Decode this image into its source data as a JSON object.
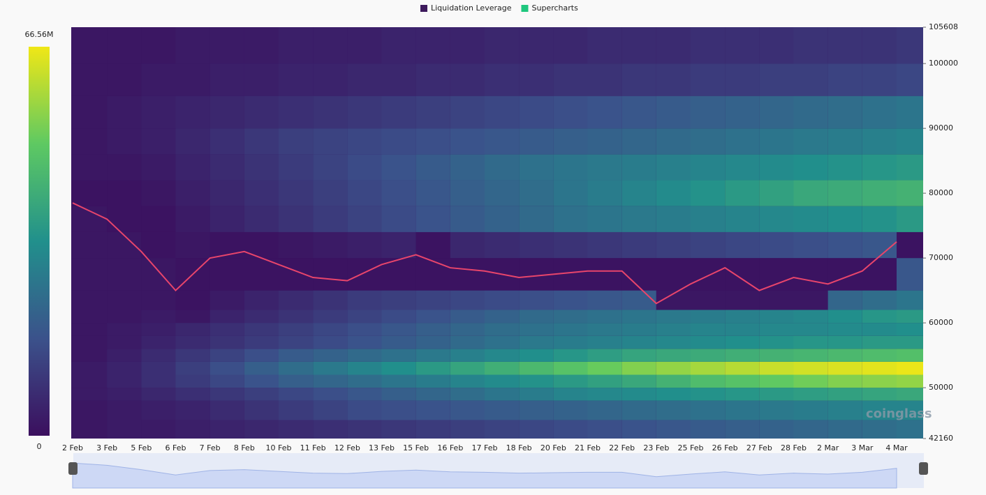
{
  "chart_data": {
    "type": "heatmap",
    "series": [
      {
        "name": "Liquidation Leverage",
        "color": "#3d1a5c"
      },
      {
        "name": "Supercharts",
        "color": "#1fc77e"
      }
    ],
    "watermark": "coinglass",
    "categories": [
      "2 Feb",
      "3 Feb",
      "5 Feb",
      "6 Feb",
      "7 Feb",
      "8 Feb",
      "10 Feb",
      "11 Feb",
      "12 Feb",
      "13 Feb",
      "15 Feb",
      "16 Feb",
      "17 Feb",
      "18 Feb",
      "20 Feb",
      "21 Feb",
      "22 Feb",
      "23 Feb",
      "25 Feb",
      "26 Feb",
      "27 Feb",
      "28 Feb",
      "2 Mar",
      "3 Mar",
      "4 Mar"
    ],
    "ylim": [
      42160,
      105608
    ],
    "yticks": [
      42160,
      50000,
      60000,
      70000,
      80000,
      90000,
      100000,
      105608
    ],
    "zlim": [
      0,
      66.56
    ],
    "zticks": [
      0,
      {
        "value": 66.56,
        "label": "66.56M"
      }
    ],
    "y_bins": [
      42160,
      45000,
      48000,
      50000,
      52000,
      54000,
      56000,
      58000,
      60000,
      62000,
      65000,
      70000,
      74000,
      78000,
      82000,
      86000,
      90000,
      95000,
      100000,
      105608
    ],
    "z": [
      [
        2,
        3,
        3,
        4,
        5,
        6,
        7,
        8,
        9,
        10,
        11,
        12,
        13,
        14,
        15,
        16,
        17,
        18,
        19,
        20,
        21,
        22,
        23,
        24,
        25
      ],
      [
        2,
        3,
        4,
        5,
        7,
        9,
        11,
        13,
        15,
        16,
        17,
        18,
        19,
        20,
        21,
        22,
        23,
        24,
        25,
        26,
        27,
        28,
        29,
        30,
        30
      ],
      [
        3,
        4,
        6,
        8,
        10,
        12,
        14,
        16,
        18,
        20,
        22,
        24,
        26,
        28,
        30,
        31,
        32,
        33,
        34,
        35,
        36,
        37,
        38,
        39,
        40
      ],
      [
        3,
        5,
        8,
        11,
        14,
        17,
        20,
        22,
        24,
        26,
        28,
        30,
        32,
        34,
        36,
        38,
        40,
        43,
        46,
        48,
        50,
        52,
        54,
        55,
        56
      ],
      [
        3,
        5,
        8,
        12,
        16,
        20,
        24,
        27,
        30,
        33,
        36,
        39,
        42,
        45,
        48,
        51,
        54,
        56,
        58,
        60,
        62,
        63,
        64,
        65,
        66
      ],
      [
        2,
        4,
        7,
        10,
        13,
        16,
        19,
        21,
        23,
        25,
        27,
        29,
        31,
        33,
        35,
        37,
        39,
        40,
        41,
        42,
        43,
        44,
        45,
        46,
        47
      ],
      [
        2,
        3,
        5,
        7,
        9,
        11,
        13,
        15,
        17,
        19,
        21,
        23,
        25,
        27,
        28,
        29,
        30,
        31,
        32,
        33,
        34,
        35,
        35,
        36,
        36
      ],
      [
        2,
        3,
        4,
        6,
        8,
        10,
        12,
        14,
        16,
        18,
        20,
        22,
        24,
        25,
        26,
        27,
        28,
        29,
        30,
        30,
        31,
        31,
        32,
        32,
        33
      ],
      [
        2,
        2,
        3,
        2,
        5,
        7,
        9,
        11,
        13,
        15,
        17,
        19,
        21,
        23,
        24,
        25,
        26,
        27,
        28,
        29,
        30,
        31,
        33,
        35,
        36
      ],
      [
        2,
        2,
        2,
        1,
        3,
        5,
        7,
        9,
        11,
        12,
        13,
        14,
        15,
        16,
        17,
        18,
        19,
        2,
        2,
        2,
        2,
        2,
        22,
        24,
        26
      ],
      [
        2,
        2,
        2,
        1,
        1,
        1,
        1,
        1,
        1,
        1,
        1,
        1,
        1,
        1,
        1,
        1,
        1,
        1,
        1,
        1,
        1,
        1,
        1,
        1,
        18
      ],
      [
        2,
        2,
        1,
        2,
        1,
        1,
        2,
        3,
        4,
        5,
        1,
        6,
        7,
        8,
        9,
        10,
        11,
        12,
        13,
        14,
        15,
        16,
        17,
        18,
        1
      ],
      [
        2,
        1,
        1,
        3,
        5,
        7,
        9,
        11,
        13,
        15,
        17,
        19,
        21,
        23,
        25,
        26,
        27,
        28,
        29,
        30,
        31,
        32,
        33,
        34,
        36
      ],
      [
        1,
        1,
        2,
        4,
        6,
        8,
        10,
        12,
        14,
        16,
        18,
        20,
        22,
        24,
        26,
        28,
        30,
        32,
        34,
        36,
        38,
        40,
        41,
        42,
        43
      ],
      [
        2,
        2,
        3,
        5,
        7,
        9,
        11,
        13,
        15,
        17,
        19,
        21,
        23,
        25,
        26,
        27,
        28,
        29,
        30,
        31,
        32,
        33,
        34,
        35,
        36
      ],
      [
        2,
        3,
        4,
        6,
        8,
        10,
        12,
        13,
        14,
        15,
        16,
        17,
        18,
        19,
        20,
        21,
        22,
        23,
        24,
        25,
        26,
        27,
        28,
        29,
        30
      ],
      [
        2,
        3,
        4,
        5,
        6,
        7,
        8,
        9,
        10,
        11,
        12,
        13,
        14,
        15,
        16,
        17,
        18,
        19,
        20,
        21,
        22,
        23,
        24,
        25,
        26
      ],
      [
        2,
        2,
        3,
        3,
        4,
        4,
        5,
        5,
        6,
        6,
        7,
        7,
        8,
        8,
        9,
        9,
        10,
        10,
        11,
        11,
        12,
        12,
        13,
        13,
        14
      ],
      [
        2,
        2,
        2,
        3,
        3,
        3,
        4,
        4,
        4,
        5,
        5,
        5,
        6,
        6,
        6,
        7,
        7,
        7,
        8,
        8,
        8,
        9,
        9,
        9,
        10
      ]
    ],
    "price": [
      78500,
      76000,
      71000,
      65000,
      70000,
      71000,
      69000,
      67000,
      66500,
      69000,
      70500,
      68500,
      68000,
      67000,
      67500,
      68000,
      68000,
      63000,
      66000,
      68500,
      65000,
      67000,
      66000,
      68000,
      72500
    ],
    "price_color": "#e8456b"
  }
}
